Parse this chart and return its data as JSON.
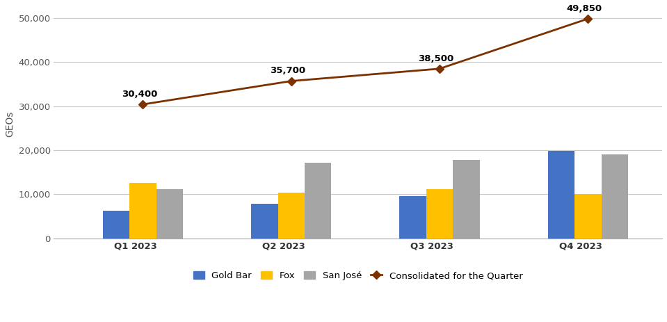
{
  "quarters": [
    "Q1 2023",
    "Q2 2023",
    "Q3 2023",
    "Q4 2023"
  ],
  "gold_bar": [
    6300,
    7900,
    9600,
    19900
  ],
  "fox": [
    12500,
    10300,
    11100,
    10100
  ],
  "san_jose": [
    11100,
    17200,
    17800,
    19100
  ],
  "consolidated": [
    30400,
    35700,
    38500,
    49850
  ],
  "consolidated_labels": [
    "30,400",
    "35,700",
    "38,500",
    "49,850"
  ],
  "bar_colors": {
    "Gold Bar": "#4472C4",
    "Fox": "#FFC000",
    "San José": "#A5A5A5"
  },
  "line_color": "#7B3200",
  "ylabel": "GEOs",
  "ylim": [
    0,
    52000
  ],
  "yticks": [
    0,
    10000,
    20000,
    30000,
    40000,
    50000
  ],
  "background_color": "#FFFFFF",
  "grid_color": "#C8C8C8",
  "annotation_fontsize": 9.5,
  "label_fontsize": 10,
  "tick_fontsize": 9.5,
  "legend_fontsize": 9.5,
  "bar_width": 0.18
}
